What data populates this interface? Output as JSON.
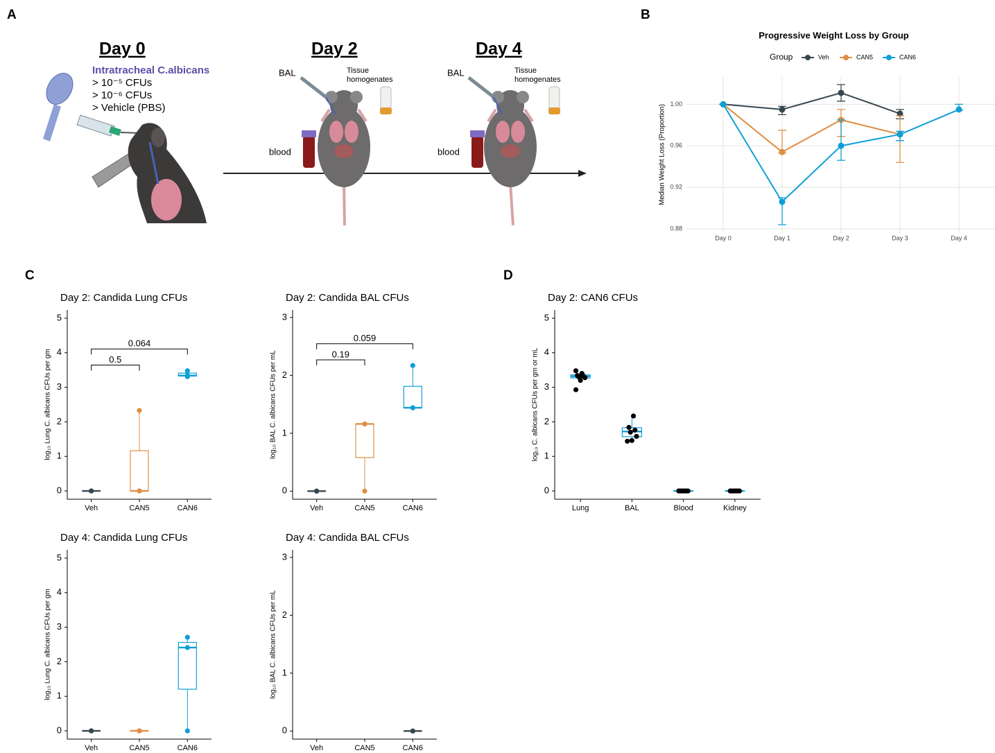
{
  "panel_labels": [
    "A",
    "B",
    "C",
    "D"
  ],
  "schematic": {
    "day0": {
      "title": "Day 0",
      "route": "Intratracheal C.albicans",
      "doses": [
        "> 10⁻⁵ CFUs",
        "> 10⁻⁶ CFUs",
        "> Vehicle (PBS)"
      ]
    },
    "day2": {
      "title": "Day 2",
      "bal": "BAL",
      "tissue": [
        "Tissue",
        "homogenates"
      ],
      "blood": "blood"
    },
    "day4": {
      "title": "Day 4",
      "bal": "BAL",
      "tissue": [
        "Tissue",
        "homogenates"
      ],
      "blood": "blood"
    }
  },
  "chart_data": [
    {
      "type": "line",
      "title": "Progressive Weight Loss by Group",
      "legend_title": "Group",
      "legend": "top",
      "y_label": "Median Weight Loss (Proportion)",
      "categories": [
        "Day 0",
        "Day 1",
        "Day 2",
        "Day 3",
        "Day 4"
      ],
      "series": [
        {
          "name": "Veh",
          "color": "#37474f",
          "values": [
            1,
            0.995,
            1.011,
            0.991,
            null
          ],
          "lower": [
            1,
            0.99,
            1.003,
            0.986,
            null
          ],
          "upper": [
            1,
            0.998,
            1.019,
            0.995,
            null
          ]
        },
        {
          "name": "CAN5",
          "color": "#e08e45",
          "values": [
            1,
            0.954,
            0.985,
            0.971,
            null
          ],
          "lower": [
            1,
            0.953,
            0.969,
            0.944,
            null
          ],
          "upper": [
            1,
            0.975,
            0.995,
            0.989,
            null
          ]
        },
        {
          "name": "CAN6",
          "color": "#0e9fd6",
          "values": [
            1,
            0.906,
            0.96,
            0.971,
            0.995
          ],
          "lower": [
            1,
            0.884,
            0.946,
            0.965,
            0.994
          ],
          "upper": [
            1,
            0.91,
            0.985,
            0.974,
            1
          ]
        }
      ],
      "ylim": [
        0.876,
        1.027
      ],
      "yticks": [
        0.88,
        0.92,
        0.96,
        {
          "value": 1,
          "label": "1.00"
        }
      ],
      "grid": true
    },
    {
      "type": "box",
      "title": "Day 2: Candida Lung CFUs",
      "y_label": "log₁₀ Lung C. albicans CFUs per gm",
      "categories": [
        "Veh",
        "CAN5",
        "CAN6"
      ],
      "colors": [
        "#37474f",
        "#e08e45",
        "#0e9fd6"
      ],
      "boxes": [
        {
          "low": 0,
          "q1": 0,
          "median": 0,
          "q3": 0,
          "high": 0,
          "points": [
            0,
            0,
            0
          ]
        },
        {
          "low": 0,
          "q1": 0,
          "median": 0,
          "q3": 1.165,
          "high": 2.33,
          "points": [
            0,
            0,
            2.33
          ]
        },
        {
          "low": 3.31,
          "q1": 3.325,
          "median": 3.34,
          "q3": 3.41,
          "high": 3.48,
          "points": [
            3.31,
            3.34,
            3.48
          ]
        }
      ],
      "ylim": [
        -0.24,
        5.24
      ],
      "yticks": [
        0,
        1,
        2,
        3,
        4,
        5
      ],
      "comparisons": [
        {
          "groups": [
            "Veh",
            "CAN5"
          ],
          "p": 0.5
        },
        {
          "groups": [
            "Veh",
            "CAN6"
          ],
          "p": 0.064
        }
      ]
    },
    {
      "type": "box",
      "title": "Day 2: Candida BAL CFUs",
      "y_label": "log₁₀ BAL C. albicans CFUs per mL",
      "categories": [
        "Veh",
        "CAN5",
        "CAN6"
      ],
      "colors": [
        "#37474f",
        "#e08e45",
        "#0e9fd6"
      ],
      "boxes": [
        {
          "low": 0,
          "q1": 0,
          "median": 0,
          "q3": 0,
          "high": 0,
          "points": [
            0,
            0,
            0
          ]
        },
        {
          "low": 0,
          "q1": 0.58,
          "median": 1.16,
          "q3": 1.16,
          "high": 1.16,
          "points": [
            0,
            1.16,
            1.16
          ]
        },
        {
          "low": 1.44,
          "q1": 1.44,
          "median": 1.44,
          "q3": 1.81,
          "high": 2.17,
          "points": [
            1.44,
            1.44,
            2.17
          ]
        }
      ],
      "ylim": [
        -0.14,
        3.13
      ],
      "yticks": [
        0,
        1,
        2,
        3
      ],
      "comparisons": [
        {
          "groups": [
            "Veh",
            "CAN5"
          ],
          "p": 0.19
        },
        {
          "groups": [
            "Veh",
            "CAN6"
          ],
          "p": 0.059
        }
      ]
    },
    {
      "type": "box",
      "title": "Day 4: Candida Lung CFUs",
      "y_label": "log₁₀ Lung C. albicans CFUs per gm",
      "categories": [
        "Veh",
        "CAN5",
        "CAN6"
      ],
      "colors": [
        "#37474f",
        "#e08e45",
        "#0e9fd6"
      ],
      "boxes": [
        {
          "low": 0,
          "q1": 0,
          "median": 0,
          "q3": 0,
          "high": 0,
          "points": [
            0,
            0,
            0
          ]
        },
        {
          "low": 0,
          "q1": 0,
          "median": 0,
          "q3": 0,
          "high": 0,
          "points": [
            0,
            0,
            0,
            0
          ]
        },
        {
          "low": 0,
          "q1": 1.205,
          "median": 2.41,
          "q3": 2.56,
          "high": 2.71,
          "points": [
            0,
            2.41,
            2.71
          ]
        }
      ],
      "ylim": [
        -0.24,
        5.24
      ],
      "yticks": [
        0,
        1,
        2,
        3,
        4,
        5
      ]
    },
    {
      "type": "box",
      "title": "Day 4: Candida BAL CFUs",
      "y_label": "log₁₀ BAL C. albicans CFUs per mL",
      "categories": [
        "Veh",
        "CAN5",
        "CAN6"
      ],
      "colors": [
        "#37474f",
        "#e08e45",
        "#37474f"
      ],
      "boxes": [
        null,
        null,
        {
          "low": 0,
          "q1": 0,
          "median": 0,
          "q3": 0,
          "high": 0,
          "points": [
            0,
            0
          ]
        }
      ],
      "ylim": [
        -0.14,
        3.13
      ],
      "yticks": [
        0,
        1,
        2,
        3
      ]
    },
    {
      "type": "box",
      "title": "Day 2: CAN6 CFUs",
      "y_label": "log₁₀ C. albicans CFUs per gm or mL",
      "categories": [
        "Lung",
        "BAL",
        "Blood",
        "Kidney"
      ],
      "colors": [
        "#0e9fd6",
        "#0e9fd6",
        "#0e9fd6",
        "#0e9fd6"
      ],
      "point_color": "#000000",
      "boxes": [
        {
          "low": 3.2,
          "q1": 3.27,
          "median": 3.32,
          "q3": 3.36,
          "high": 3.48,
          "points": [
            2.93,
            3.2,
            3.28,
            3.3,
            3.32,
            3.34,
            3.4,
            3.48
          ]
        },
        {
          "low": 1.44,
          "q1": 1.57,
          "median": 1.72,
          "q3": 1.83,
          "high": 2.17,
          "points": [
            1.44,
            1.46,
            1.58,
            1.7,
            1.76,
            1.84,
            2.17
          ]
        },
        {
          "low": 0,
          "q1": 0,
          "median": 0,
          "q3": 0,
          "high": 0,
          "points": [
            0,
            0,
            0,
            0,
            0,
            0,
            0,
            0
          ]
        },
        {
          "low": 0,
          "q1": 0,
          "median": 0,
          "q3": 0,
          "high": 0,
          "points": [
            0,
            0,
            0,
            0,
            0,
            0,
            0,
            0
          ]
        }
      ],
      "ylim": [
        -0.24,
        5.24
      ],
      "yticks": [
        0,
        1,
        2,
        3,
        4,
        5
      ]
    }
  ]
}
